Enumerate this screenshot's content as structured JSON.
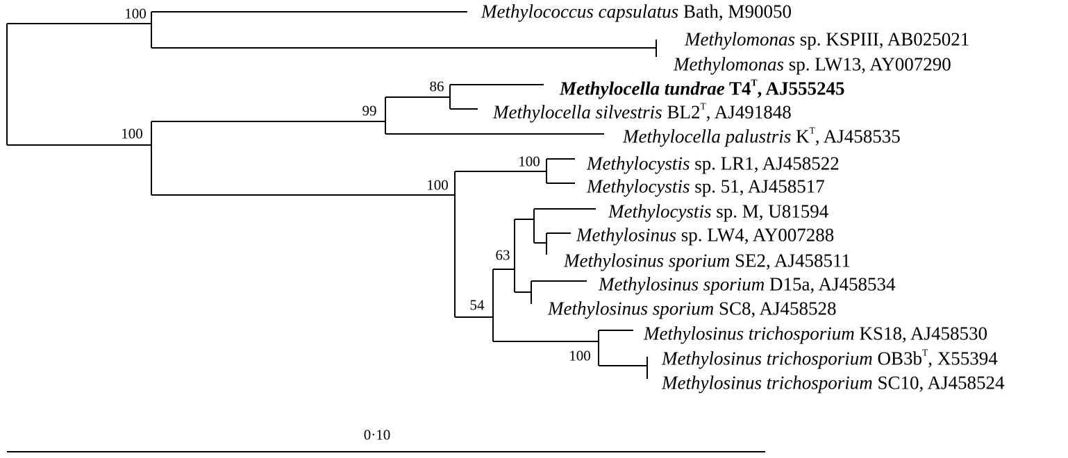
{
  "taxa": [
    {
      "italic": "Methylococcus capsulatus",
      "strain": " Bath, M90050"
    },
    {
      "italic": "Methylomonas",
      "strain": " sp. KSPIII, AB025021"
    },
    {
      "italic": "Methylomonas",
      "strain": " sp. LW13, AY007290"
    },
    {
      "italic": "Methylocella tundrae",
      "strain": " T4",
      "sup": "T",
      "accession": ", AJ555245",
      "bold": true
    },
    {
      "italic": "Methylocella silvestris",
      "strain": " BL2",
      "sup": "T",
      "accession": ", AJ491848"
    },
    {
      "italic": "Methylocella palustris",
      "strain": " K",
      "sup": "T",
      "accession": ", AJ458535"
    },
    {
      "italic": "Methylocystis",
      "strain": " sp. LR1, AJ458522"
    },
    {
      "italic": "Methylocystis",
      "strain": " sp. 51, AJ458517"
    },
    {
      "italic": "Methylocystis",
      "strain": " sp. M, U81594"
    },
    {
      "italic": "Methylosinus",
      "strain": " sp. LW4, AY007288"
    },
    {
      "italic": "Methylosinus sporium",
      "strain": " SE2, AJ458511"
    },
    {
      "italic": "Methylosinus sporium",
      "strain": " D15a, AJ458534"
    },
    {
      "italic": "Methylosinus sporium",
      "strain": " SC8, AJ458528"
    },
    {
      "italic": "Methylosinus trichosporium",
      "strain": " KS18, AJ458530"
    },
    {
      "italic": "Methylosinus trichosporium",
      "strain": " OB3b",
      "sup": "T",
      "accession": ", X55394"
    },
    {
      "italic": "Methylosinus trichosporium",
      "strain": " SC10, AJ458524"
    }
  ],
  "bootstrap": [
    "100",
    "100",
    "99",
    "86",
    "100",
    "100",
    "63",
    "54",
    "100"
  ],
  "scale_bar": {
    "label": "0·10",
    "value": 0.1
  }
}
